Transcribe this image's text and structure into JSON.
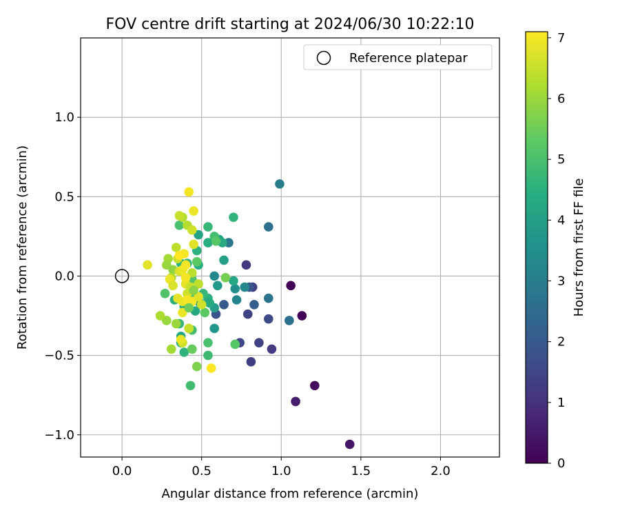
{
  "chart_data": {
    "type": "scatter",
    "title": "FOV centre drift starting at 2024/06/30 10:22:10",
    "xlabel": "Angular distance from reference (arcmin)",
    "ylabel": "Rotation from reference (arcmin)",
    "xlim": [
      -0.26,
      2.37
    ],
    "ylim": [
      -1.14,
      1.5
    ],
    "xticks": [
      0.0,
      0.5,
      1.0,
      1.5,
      2.0
    ],
    "xtick_labels": [
      "0.0",
      "0.5",
      "1.0",
      "1.5",
      "2.0"
    ],
    "yticks": [
      -1.0,
      -0.5,
      0.0,
      0.5,
      1.0
    ],
    "ytick_labels": [
      "−1.0",
      "−0.5",
      "0.0",
      "0.5",
      "1.0"
    ],
    "grid": true,
    "legend": {
      "position": "top-right",
      "label": "Reference platepar"
    },
    "reference_point": {
      "x": 0.0,
      "y": 0.0
    },
    "colorbar": {
      "label": "Hours from first FF file",
      "min": 0,
      "max": 7.1,
      "ticks": [
        0,
        1,
        2,
        3,
        4,
        5,
        6,
        7
      ],
      "tick_labels": [
        "0",
        "1",
        "2",
        "3",
        "4",
        "5",
        "6",
        "7"
      ],
      "colormap": "viridis"
    },
    "points": [
      {
        "x": 1.06,
        "y": -0.06,
        "h": 0.05
      },
      {
        "x": 1.13,
        "y": -0.25,
        "h": 0.05
      },
      {
        "x": 1.21,
        "y": -0.69,
        "h": 0.2
      },
      {
        "x": 1.43,
        "y": -1.06,
        "h": 0.4
      },
      {
        "x": 1.09,
        "y": -0.79,
        "h": 0.55
      },
      {
        "x": 0.94,
        "y": -0.46,
        "h": 1.2
      },
      {
        "x": 0.81,
        "y": -0.54,
        "h": 1.3
      },
      {
        "x": 0.86,
        "y": -0.42,
        "h": 1.4
      },
      {
        "x": 0.74,
        "y": -0.42,
        "h": 1.5
      },
      {
        "x": 0.78,
        "y": 0.07,
        "h": 1.1
      },
      {
        "x": 0.82,
        "y": -0.07,
        "h": 1.3
      },
      {
        "x": 0.79,
        "y": -0.24,
        "h": 1.4
      },
      {
        "x": 0.92,
        "y": -0.27,
        "h": 1.6
      },
      {
        "x": 0.59,
        "y": -0.24,
        "h": 1.8
      },
      {
        "x": 0.8,
        "y": -0.07,
        "h": 1.9
      },
      {
        "x": 0.64,
        "y": -0.18,
        "h": 2.0
      },
      {
        "x": 0.83,
        "y": -0.18,
        "h": 2.1
      },
      {
        "x": 0.92,
        "y": 0.31,
        "h": 2.6
      },
      {
        "x": 1.05,
        "y": -0.28,
        "h": 2.6
      },
      {
        "x": 0.92,
        "y": -0.14,
        "h": 2.7
      },
      {
        "x": 0.99,
        "y": 0.58,
        "h": 3.0
      },
      {
        "x": 0.67,
        "y": 0.21,
        "h": 2.8
      },
      {
        "x": 0.72,
        "y": -0.15,
        "h": 3.2
      },
      {
        "x": 0.77,
        "y": -0.07,
        "h": 3.3
      },
      {
        "x": 0.71,
        "y": -0.08,
        "h": 3.5
      },
      {
        "x": 0.58,
        "y": 0.0,
        "h": 3.3
      },
      {
        "x": 0.6,
        "y": -0.06,
        "h": 3.8
      },
      {
        "x": 0.58,
        "y": -0.2,
        "h": 3.9
      },
      {
        "x": 0.58,
        "y": -0.33,
        "h": 3.7
      },
      {
        "x": 0.61,
        "y": 0.23,
        "h": 4.1
      },
      {
        "x": 0.64,
        "y": 0.1,
        "h": 4.0
      },
      {
        "x": 0.7,
        "y": -0.03,
        "h": 4.2
      },
      {
        "x": 0.63,
        "y": 0.21,
        "h": 4.3
      },
      {
        "x": 0.7,
        "y": 0.37,
        "h": 4.6
      },
      {
        "x": 0.54,
        "y": 0.21,
        "h": 4.4
      },
      {
        "x": 0.54,
        "y": -0.14,
        "h": 4.5
      },
      {
        "x": 0.55,
        "y": -0.17,
        "h": 4.3
      },
      {
        "x": 0.48,
        "y": 0.26,
        "h": 4.1
      },
      {
        "x": 0.49,
        "y": -0.17,
        "h": 4.0
      },
      {
        "x": 0.46,
        "y": -0.22,
        "h": 4.2
      },
      {
        "x": 0.48,
        "y": 0.07,
        "h": 4.4
      },
      {
        "x": 0.47,
        "y": 0.16,
        "h": 4.5
      },
      {
        "x": 0.51,
        "y": -0.11,
        "h": 4.7
      },
      {
        "x": 0.54,
        "y": 0.31,
        "h": 4.7
      },
      {
        "x": 0.58,
        "y": 0.25,
        "h": 4.9
      },
      {
        "x": 0.54,
        "y": -0.42,
        "h": 5.0
      },
      {
        "x": 0.54,
        "y": -0.5,
        "h": 4.8
      },
      {
        "x": 0.71,
        "y": -0.43,
        "h": 5.2
      },
      {
        "x": 0.43,
        "y": -0.69,
        "h": 4.9
      },
      {
        "x": 0.39,
        "y": -0.48,
        "h": 4.6
      },
      {
        "x": 0.37,
        "y": -0.42,
        "h": 4.3
      },
      {
        "x": 0.37,
        "y": -0.38,
        "h": 4.2
      },
      {
        "x": 0.39,
        "y": -0.19,
        "h": 4.4
      },
      {
        "x": 0.36,
        "y": -0.3,
        "h": 4.7
      },
      {
        "x": 0.33,
        "y": -0.15,
        "h": 4.5
      },
      {
        "x": 0.37,
        "y": 0.08,
        "h": 4.5
      },
      {
        "x": 0.41,
        "y": 0.08,
        "h": 4.6
      },
      {
        "x": 0.44,
        "y": -0.34,
        "h": 4.9
      },
      {
        "x": 0.27,
        "y": -0.11,
        "h": 5.1
      },
      {
        "x": 0.36,
        "y": 0.32,
        "h": 5.0
      },
      {
        "x": 0.47,
        "y": 0.09,
        "h": 5.3
      },
      {
        "x": 0.43,
        "y": -0.14,
        "h": 5.2
      },
      {
        "x": 0.44,
        "y": -0.02,
        "h": 5.1
      },
      {
        "x": 0.52,
        "y": -0.23,
        "h": 5.3
      },
      {
        "x": 0.59,
        "y": 0.22,
        "h": 5.2
      },
      {
        "x": 0.44,
        "y": -0.46,
        "h": 5.4
      },
      {
        "x": 0.47,
        "y": -0.57,
        "h": 5.7
      },
      {
        "x": 0.31,
        "y": -0.46,
        "h": 6.1
      },
      {
        "x": 0.28,
        "y": -0.28,
        "h": 6.0
      },
      {
        "x": 0.24,
        "y": -0.25,
        "h": 6.2
      },
      {
        "x": 0.34,
        "y": -0.3,
        "h": 6.0
      },
      {
        "x": 0.42,
        "y": -0.33,
        "h": 6.4
      },
      {
        "x": 0.38,
        "y": -0.42,
        "h": 6.6
      },
      {
        "x": 0.29,
        "y": 0.11,
        "h": 6.1
      },
      {
        "x": 0.28,
        "y": 0.07,
        "h": 6.0
      },
      {
        "x": 0.32,
        "y": 0.04,
        "h": 5.9
      },
      {
        "x": 0.31,
        "y": -0.01,
        "h": 6.2
      },
      {
        "x": 0.34,
        "y": 0.18,
        "h": 6.4
      },
      {
        "x": 0.35,
        "y": 0.11,
        "h": 6.5
      },
      {
        "x": 0.38,
        "y": 0.37,
        "h": 6.3
      },
      {
        "x": 0.36,
        "y": 0.38,
        "h": 6.5
      },
      {
        "x": 0.41,
        "y": 0.32,
        "h": 6.3
      },
      {
        "x": 0.44,
        "y": 0.29,
        "h": 6.6
      },
      {
        "x": 0.45,
        "y": 0.41,
        "h": 6.9
      },
      {
        "x": 0.42,
        "y": 0.53,
        "h": 7.0
      },
      {
        "x": 0.16,
        "y": 0.07,
        "h": 6.8
      },
      {
        "x": 0.3,
        "y": -0.02,
        "h": 6.9
      },
      {
        "x": 0.32,
        "y": -0.06,
        "h": 6.7
      },
      {
        "x": 0.36,
        "y": 0.03,
        "h": 6.7
      },
      {
        "x": 0.38,
        "y": 0.04,
        "h": 6.9
      },
      {
        "x": 0.4,
        "y": 0.07,
        "h": 7.0
      },
      {
        "x": 0.39,
        "y": 0.14,
        "h": 7.0
      },
      {
        "x": 0.36,
        "y": 0.13,
        "h": 7.1
      },
      {
        "x": 0.4,
        "y": -0.05,
        "h": 6.8
      },
      {
        "x": 0.41,
        "y": -0.11,
        "h": 6.6
      },
      {
        "x": 0.43,
        "y": -0.07,
        "h": 6.5
      },
      {
        "x": 0.44,
        "y": 0.02,
        "h": 6.4
      },
      {
        "x": 0.45,
        "y": 0.2,
        "h": 6.8
      },
      {
        "x": 0.35,
        "y": -0.14,
        "h": 6.8
      },
      {
        "x": 0.38,
        "y": -0.16,
        "h": 6.9
      },
      {
        "x": 0.41,
        "y": -0.15,
        "h": 7.0
      },
      {
        "x": 0.44,
        "y": -0.16,
        "h": 7.0
      },
      {
        "x": 0.48,
        "y": -0.13,
        "h": 6.8
      },
      {
        "x": 0.48,
        "y": -0.05,
        "h": 6.4
      },
      {
        "x": 0.5,
        "y": -0.18,
        "h": 6.6
      },
      {
        "x": 0.38,
        "y": -0.23,
        "h": 6.9
      },
      {
        "x": 0.4,
        "y": -0.01,
        "h": 7.0
      },
      {
        "x": 0.56,
        "y": -0.58,
        "h": 7.1
      },
      {
        "x": 0.37,
        "y": -0.4,
        "h": 6.9
      },
      {
        "x": 0.42,
        "y": -0.33,
        "h": 6.5
      },
      {
        "x": 0.65,
        "y": -0.01,
        "h": 5.6
      },
      {
        "x": 0.45,
        "y": -0.09,
        "h": 5.8
      },
      {
        "x": 0.42,
        "y": -0.2,
        "h": 5.5
      }
    ]
  }
}
